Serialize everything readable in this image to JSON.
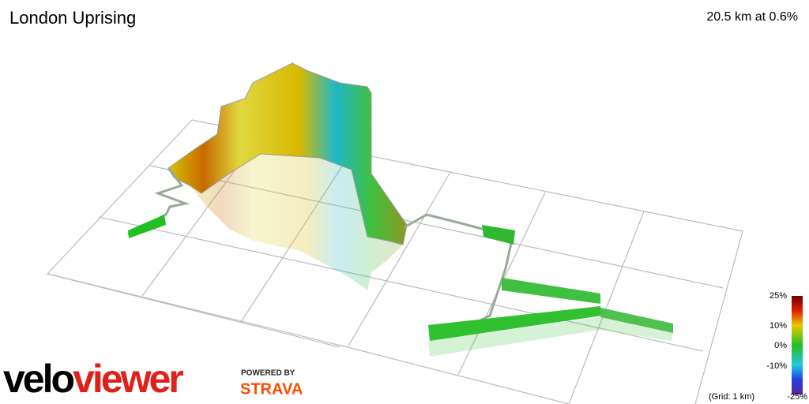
{
  "header": {
    "title": "London Uprising",
    "stats": "20.5 km at 0.6%"
  },
  "legend": {
    "labels": [
      "25%",
      "10%",
      "0%",
      "-10%",
      "-25%"
    ],
    "note": "(Grid: 1 km)"
  },
  "branding": {
    "logo": "veloviewer",
    "powered": "POWERED BY",
    "partner": "STRAVA"
  }
}
